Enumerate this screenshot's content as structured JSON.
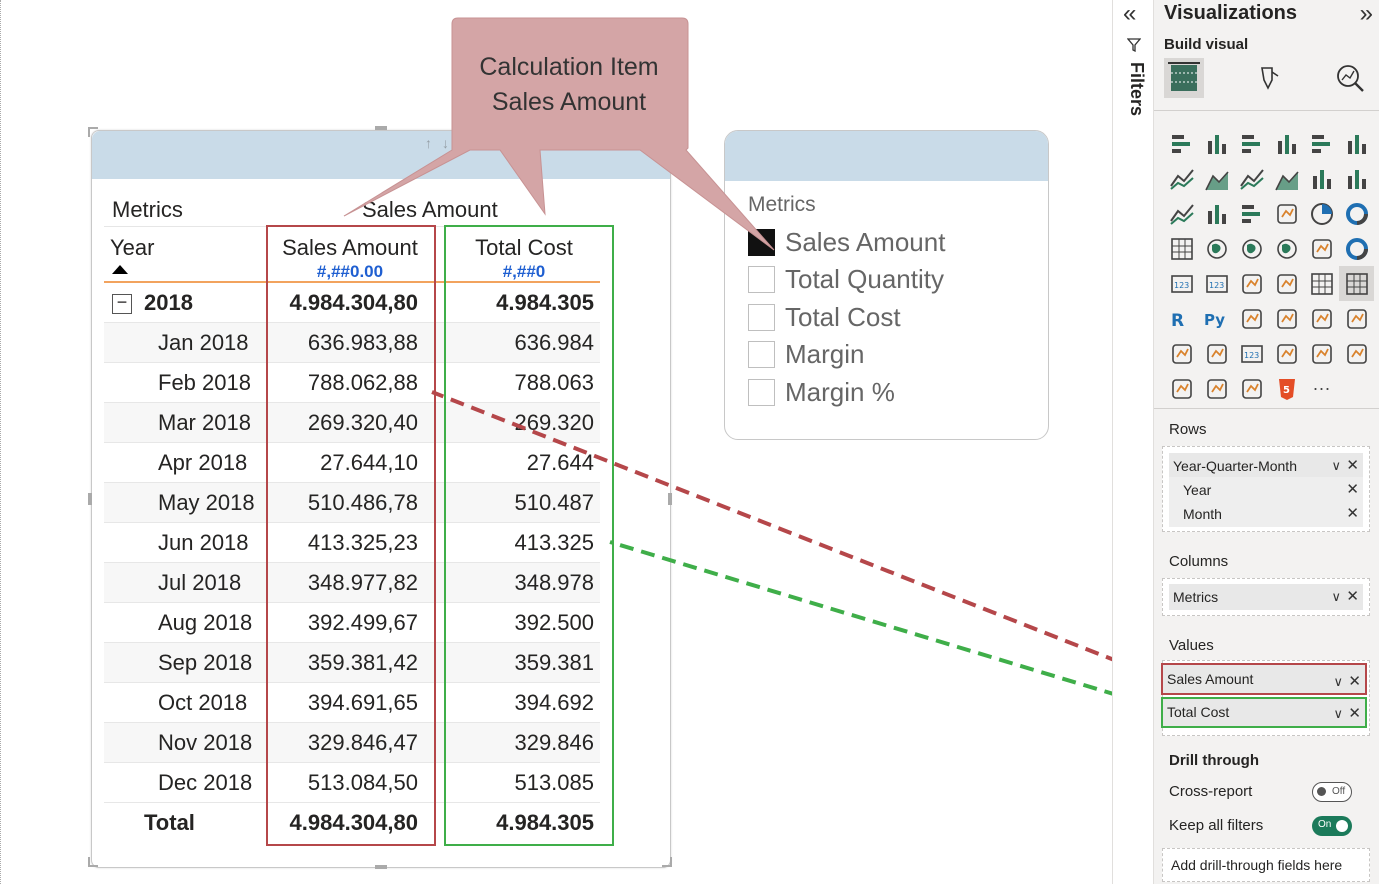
{
  "matrix": {
    "column_group_label": "Metrics",
    "column_group_value": "Sales Amount",
    "row_header": "Year",
    "columns": [
      {
        "label": "Sales Amount",
        "format": "#,##0.00"
      },
      {
        "label": "Total Cost",
        "format": "#,##0"
      }
    ],
    "year_row": {
      "label": "2018",
      "expander": "−",
      "sales": "4.984.304,80",
      "cost": "4.984.305"
    },
    "rows": [
      {
        "label": "Jan 2018",
        "sales": "636.983,88",
        "cost": "636.984"
      },
      {
        "label": "Feb 2018",
        "sales": "788.062,88",
        "cost": "788.063"
      },
      {
        "label": "Mar 2018",
        "sales": "269.320,40",
        "cost": "269.320"
      },
      {
        "label": "Apr 2018",
        "sales": "27.644,10",
        "cost": "27.644"
      },
      {
        "label": "May 2018",
        "sales": "510.486,78",
        "cost": "510.487"
      },
      {
        "label": "Jun 2018",
        "sales": "413.325,23",
        "cost": "413.325"
      },
      {
        "label": "Jul 2018",
        "sales": "348.977,82",
        "cost": "348.978"
      },
      {
        "label": "Aug 2018",
        "sales": "392.499,67",
        "cost": "392.500"
      },
      {
        "label": "Sep 2018",
        "sales": "359.381,42",
        "cost": "359.381"
      },
      {
        "label": "Oct 2018",
        "sales": "394.691,65",
        "cost": "394.692"
      },
      {
        "label": "Nov 2018",
        "sales": "329.846,47",
        "cost": "329.846"
      },
      {
        "label": "Dec 2018",
        "sales": "513.084,50",
        "cost": "513.085"
      }
    ],
    "total_row": {
      "label": "Total",
      "sales": "4.984.304,80",
      "cost": "4.984.305"
    }
  },
  "callout": {
    "line1": "Calculation Item",
    "line2": "Sales Amount",
    "fill": "#d4a5a6"
  },
  "slicer": {
    "title": "Metrics",
    "items": [
      {
        "label": "Sales Amount",
        "checked": true
      },
      {
        "label": "Total Quantity",
        "checked": false
      },
      {
        "label": "Total Cost",
        "checked": false
      },
      {
        "label": "Margin",
        "checked": false
      },
      {
        "label": "Margin %",
        "checked": false
      }
    ]
  },
  "filters_pane": {
    "label": "Filters",
    "collapse_icon": "chevron-double-left-icon"
  },
  "viz_pane": {
    "title": "Visualizations",
    "build_visual": "Build visual",
    "rows_label": "Rows",
    "rows_fields": [
      {
        "label": "Year-Quarter-Month"
      },
      {
        "label": "Year"
      },
      {
        "label": "Month"
      }
    ],
    "columns_label": "Columns",
    "columns_fields": [
      {
        "label": "Metrics"
      }
    ],
    "values_label": "Values",
    "values_fields": [
      {
        "label": "Sales Amount"
      },
      {
        "label": "Total Cost"
      }
    ],
    "drill_through": "Drill through",
    "cross_report": {
      "label": "Cross-report",
      "state": "Off"
    },
    "keep_filters": {
      "label": "Keep all filters",
      "state": "On"
    },
    "add_drill": "Add drill-through fields here",
    "more_visuals": "···"
  },
  "colors": {
    "red_highlight": "#b5474a",
    "green_highlight": "#3fae49",
    "header_blue": "#c9dbe8",
    "format_blue": "#1f5fd1",
    "accent_orange": "#f2a35e"
  }
}
